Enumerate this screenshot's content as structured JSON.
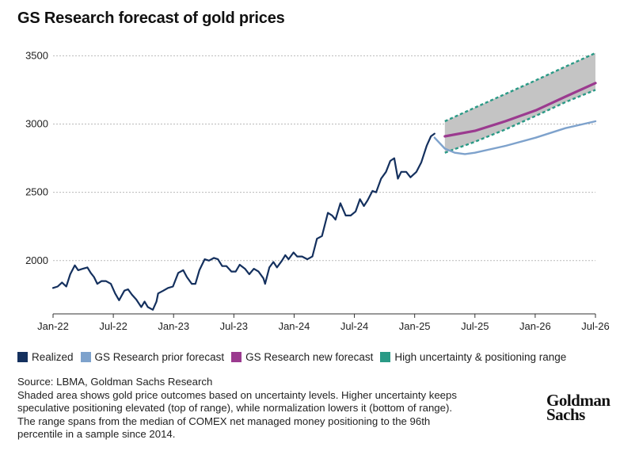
{
  "title": "GS Research forecast of gold prices",
  "legend": [
    {
      "label": "Realized",
      "color": "#14305e"
    },
    {
      "label": "GS Research prior forecast",
      "color": "#7ea2cc"
    },
    {
      "label": "GS Research new forecast",
      "color": "#9b3a8f"
    },
    {
      "label": "High uncertainty & positioning range",
      "color": "#2a9a86"
    }
  ],
  "source": "Source: LBMA, Goldman Sachs Research",
  "note": "Shaded area shows gold price outcomes based on uncertainty levels. Higher uncertainty keeps speculative positioning elevated (top of range), while normalization lowers it (bottom of range). The range spans from the median of COMEX net managed money positioning to the 96th percentile in a sample since 2014.",
  "logo": {
    "line1": "Goldman",
    "line2": "Sachs"
  },
  "chart_data": {
    "type": "line",
    "title": "GS Research forecast of gold prices",
    "x_axis": {
      "type": "date",
      "range": [
        "2022-01",
        "2026-07"
      ],
      "ticks": [
        "Jan-22",
        "Jul-22",
        "Jan-23",
        "Jul-23",
        "Jan-24",
        "Jul-24",
        "Jan-25",
        "Jul-25",
        "Jan-26",
        "Jul-26"
      ]
    },
    "y_axis": {
      "range": [
        1610,
        3560
      ],
      "ticks": [
        2000,
        2500,
        3000,
        3500
      ]
    },
    "grid": "horizontal dashed",
    "legend_position": "bottom",
    "series": [
      {
        "name": "Realized",
        "color": "#14305e",
        "points": [
          [
            "2022-01-01",
            1800
          ],
          [
            "2022-01-15",
            1810
          ],
          [
            "2022-01-28",
            1840
          ],
          [
            "2022-02-10",
            1810
          ],
          [
            "2022-02-22",
            1900
          ],
          [
            "2022-03-08",
            1965
          ],
          [
            "2022-03-18",
            1930
          ],
          [
            "2022-04-01",
            1940
          ],
          [
            "2022-04-15",
            1950
          ],
          [
            "2022-04-25",
            1910
          ],
          [
            "2022-05-05",
            1880
          ],
          [
            "2022-05-15",
            1830
          ],
          [
            "2022-05-28",
            1850
          ],
          [
            "2022-06-10",
            1850
          ],
          [
            "2022-06-25",
            1830
          ],
          [
            "2022-07-08",
            1760
          ],
          [
            "2022-07-20",
            1710
          ],
          [
            "2022-08-05",
            1780
          ],
          [
            "2022-08-16",
            1790
          ],
          [
            "2022-08-28",
            1750
          ],
          [
            "2022-09-10",
            1715
          ],
          [
            "2022-09-25",
            1660
          ],
          [
            "2022-10-05",
            1700
          ],
          [
            "2022-10-15",
            1660
          ],
          [
            "2022-10-30",
            1640
          ],
          [
            "2022-11-10",
            1700
          ],
          [
            "2022-11-15",
            1760
          ],
          [
            "2022-12-01",
            1780
          ],
          [
            "2022-12-15",
            1800
          ],
          [
            "2022-12-30",
            1810
          ],
          [
            "2023-01-15",
            1910
          ],
          [
            "2023-01-30",
            1930
          ],
          [
            "2023-02-10",
            1880
          ],
          [
            "2023-02-25",
            1830
          ],
          [
            "2023-03-08",
            1830
          ],
          [
            "2023-03-20",
            1930
          ],
          [
            "2023-04-05",
            2010
          ],
          [
            "2023-04-18",
            2000
          ],
          [
            "2023-05-03",
            2020
          ],
          [
            "2023-05-15",
            2010
          ],
          [
            "2023-05-28",
            1960
          ],
          [
            "2023-06-10",
            1960
          ],
          [
            "2023-06-25",
            1920
          ],
          [
            "2023-07-08",
            1920
          ],
          [
            "2023-07-20",
            1970
          ],
          [
            "2023-08-05",
            1940
          ],
          [
            "2023-08-18",
            1900
          ],
          [
            "2023-09-01",
            1940
          ],
          [
            "2023-09-15",
            1920
          ],
          [
            "2023-09-30",
            1870
          ],
          [
            "2023-10-05",
            1830
          ],
          [
            "2023-10-18",
            1950
          ],
          [
            "2023-10-30",
            1990
          ],
          [
            "2023-11-10",
            1950
          ],
          [
            "2023-11-25",
            2000
          ],
          [
            "2023-12-05",
            2040
          ],
          [
            "2023-12-15",
            2010
          ],
          [
            "2023-12-30",
            2060
          ],
          [
            "2024-01-10",
            2030
          ],
          [
            "2024-01-25",
            2030
          ],
          [
            "2024-02-10",
            2010
          ],
          [
            "2024-02-25",
            2030
          ],
          [
            "2024-03-10",
            2160
          ],
          [
            "2024-03-25",
            2180
          ],
          [
            "2024-04-12",
            2350
          ],
          [
            "2024-04-25",
            2330
          ],
          [
            "2024-05-05",
            2300
          ],
          [
            "2024-05-20",
            2420
          ],
          [
            "2024-06-05",
            2330
          ],
          [
            "2024-06-20",
            2330
          ],
          [
            "2024-07-05",
            2360
          ],
          [
            "2024-07-18",
            2450
          ],
          [
            "2024-07-30",
            2400
          ],
          [
            "2024-08-10",
            2440
          ],
          [
            "2024-08-25",
            2510
          ],
          [
            "2024-09-05",
            2500
          ],
          [
            "2024-09-20",
            2600
          ],
          [
            "2024-10-05",
            2650
          ],
          [
            "2024-10-18",
            2730
          ],
          [
            "2024-10-30",
            2750
          ],
          [
            "2024-11-10",
            2600
          ],
          [
            "2024-11-20",
            2650
          ],
          [
            "2024-12-05",
            2650
          ],
          [
            "2024-12-18",
            2610
          ],
          [
            "2025-01-05",
            2650
          ],
          [
            "2025-01-20",
            2720
          ],
          [
            "2025-02-05",
            2840
          ],
          [
            "2025-02-18",
            2910
          ],
          [
            "2025-03-01",
            2930
          ]
        ]
      },
      {
        "name": "GS Research prior forecast",
        "color": "#7ea2cc",
        "points": [
          [
            "2025-03-01",
            2900
          ],
          [
            "2025-04-01",
            2820
          ],
          [
            "2025-05-01",
            2790
          ],
          [
            "2025-06-01",
            2780
          ],
          [
            "2025-07-01",
            2790
          ],
          [
            "2025-10-01",
            2840
          ],
          [
            "2026-01-01",
            2900
          ],
          [
            "2026-04-01",
            2970
          ],
          [
            "2026-07-01",
            3020
          ]
        ]
      },
      {
        "name": "GS Research new forecast",
        "color": "#9b3a8f",
        "points": [
          [
            "2025-04-01",
            2910
          ],
          [
            "2025-07-01",
            2950
          ],
          [
            "2025-10-01",
            3020
          ],
          [
            "2026-01-01",
            3100
          ],
          [
            "2026-04-01",
            3200
          ],
          [
            "2026-07-01",
            3300
          ]
        ]
      },
      {
        "name": "High uncertainty & positioning range",
        "color": "#2a9a86",
        "type": "band",
        "upper": [
          [
            "2025-04-01",
            3020
          ],
          [
            "2025-07-01",
            3120
          ],
          [
            "2025-10-01",
            3220
          ],
          [
            "2026-01-01",
            3320
          ],
          [
            "2026-04-01",
            3420
          ],
          [
            "2026-07-01",
            3520
          ]
        ],
        "lower": [
          [
            "2025-04-01",
            2790
          ],
          [
            "2025-07-01",
            2870
          ],
          [
            "2025-10-01",
            2960
          ],
          [
            "2026-01-01",
            3060
          ],
          [
            "2026-04-01",
            3160
          ],
          [
            "2026-07-01",
            3250
          ]
        ]
      }
    ]
  }
}
